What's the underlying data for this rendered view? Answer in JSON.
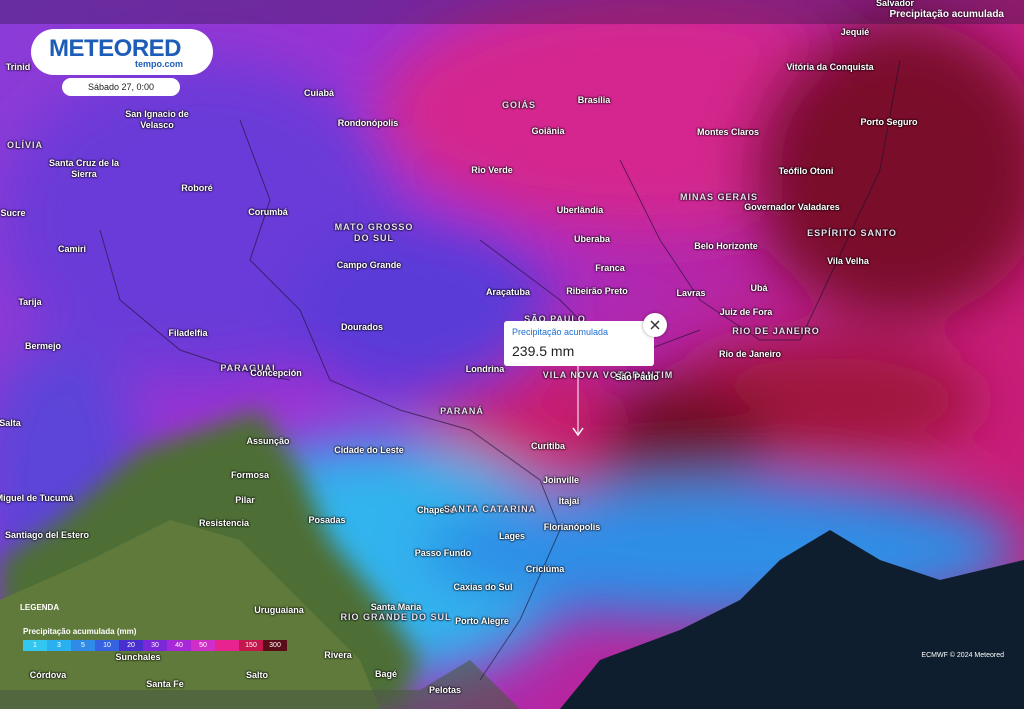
{
  "header": {
    "logo": "METEORED",
    "logo_sub": "tempo.com",
    "date": "Sábado 27, 0:00",
    "layer": "Precipitação acumulada"
  },
  "popup": {
    "title": "Precipitação acumulada",
    "value": "239.5 mm"
  },
  "legend": {
    "title": "LEGENDA",
    "subtitle": "Precipitação acumulada (mm)",
    "stops": [
      {
        "label": "1",
        "color": "#33c6f0"
      },
      {
        "label": "3",
        "color": "#2ab0ee"
      },
      {
        "label": "5",
        "color": "#2f8ae8"
      },
      {
        "label": "10",
        "color": "#3562e0"
      },
      {
        "label": "20",
        "color": "#4a2fcf"
      },
      {
        "label": "30",
        "color": "#7a28d8"
      },
      {
        "label": "40",
        "color": "#a828d8"
      },
      {
        "label": "50",
        "color": "#d02ec8"
      },
      {
        "label": "",
        "color": "#e8238f"
      },
      {
        "label": "150",
        "color": "#c4184c"
      },
      {
        "label": "300",
        "color": "#5a0c18"
      }
    ]
  },
  "attribution": "ECMWF © 2024 Meteored",
  "places": [
    {
      "label": "Salvador"
    },
    {
      "label": "Jequié"
    },
    {
      "label": "Vitória da Conquista"
    },
    {
      "label": "Trinid"
    },
    {
      "label": "Cuiabá"
    },
    {
      "label": "Brasília"
    },
    {
      "label": "GOIÁS",
      "region": true
    },
    {
      "label": "San Ignacio de Velasco"
    },
    {
      "label": "Goiânia"
    },
    {
      "label": "Rondonópolis"
    },
    {
      "label": "OLÍVIA",
      "region": true
    },
    {
      "label": "Montes Claros"
    },
    {
      "label": "Porto Seguro"
    },
    {
      "label": "Santa Cruz de la Sierra"
    },
    {
      "label": "Rio Verde"
    },
    {
      "label": "Teófilo Otoni"
    },
    {
      "label": "Roboré"
    },
    {
      "label": "MINAS GERAIS",
      "region": true
    },
    {
      "label": "Sucre"
    },
    {
      "label": "Corumbá"
    },
    {
      "label": "Uberlândia"
    },
    {
      "label": "Governador Valadares"
    },
    {
      "label": "MATO GROSSO DO SUL",
      "region": true
    },
    {
      "label": "Camiri"
    },
    {
      "label": "Uberaba"
    },
    {
      "label": "ESPÍRITO SANTO",
      "region": true
    },
    {
      "label": "Belo Horizonte"
    },
    {
      "label": "Campo Grande"
    },
    {
      "label": "Vila Velha"
    },
    {
      "label": "Franca"
    },
    {
      "label": "Tarija"
    },
    {
      "label": "Araçatuba"
    },
    {
      "label": "Ribeirão Preto"
    },
    {
      "label": "Lavras"
    },
    {
      "label": "Ubá"
    },
    {
      "label": "SÃO PAULO",
      "region": true
    },
    {
      "label": "Juiz de Fora"
    },
    {
      "label": "Filadelfia"
    },
    {
      "label": "Dourados"
    },
    {
      "label": "RIO DE JANEIRO",
      "region": true
    },
    {
      "label": "Bermejo"
    },
    {
      "label": "Rio de Janeiro"
    },
    {
      "label": "PARAGUAI",
      "region": true
    },
    {
      "label": "Londrina"
    },
    {
      "label": "Concepción"
    },
    {
      "label": "VILA NOVA VOTORANTIM",
      "region": true
    },
    {
      "label": "São Paulo"
    },
    {
      "label": "PARANÁ",
      "region": true
    },
    {
      "label": "Salta"
    },
    {
      "label": "Assunção"
    },
    {
      "label": "Cidade do Leste"
    },
    {
      "label": "Curitiba"
    },
    {
      "label": "Formosa"
    },
    {
      "label": "Joinville"
    },
    {
      "label": "Pilar"
    },
    {
      "label": "Itajaí"
    },
    {
      "label": "San Miguel de Tucumá"
    },
    {
      "label": "Chapecó"
    },
    {
      "label": "SANTA CATARINA",
      "region": true
    },
    {
      "label": "Resistencia"
    },
    {
      "label": "Posadas"
    },
    {
      "label": "Florianópolis"
    },
    {
      "label": "Lages"
    },
    {
      "label": "Santiago del Estero"
    },
    {
      "label": "Passo Fundo"
    },
    {
      "label": "Criciúma"
    },
    {
      "label": "Caxias do Sul"
    },
    {
      "label": "Uruguaiana"
    },
    {
      "label": "Santa Maria"
    },
    {
      "label": "RIO GRANDE DO SUL",
      "region": true
    },
    {
      "label": "Sunchales"
    },
    {
      "label": "Porto Alegre"
    },
    {
      "label": "Rivera"
    },
    {
      "label": "Bagé"
    },
    {
      "label": "Córdova"
    },
    {
      "label": "Salto"
    },
    {
      "label": "Santa Fe"
    },
    {
      "label": "Pelotas"
    }
  ]
}
